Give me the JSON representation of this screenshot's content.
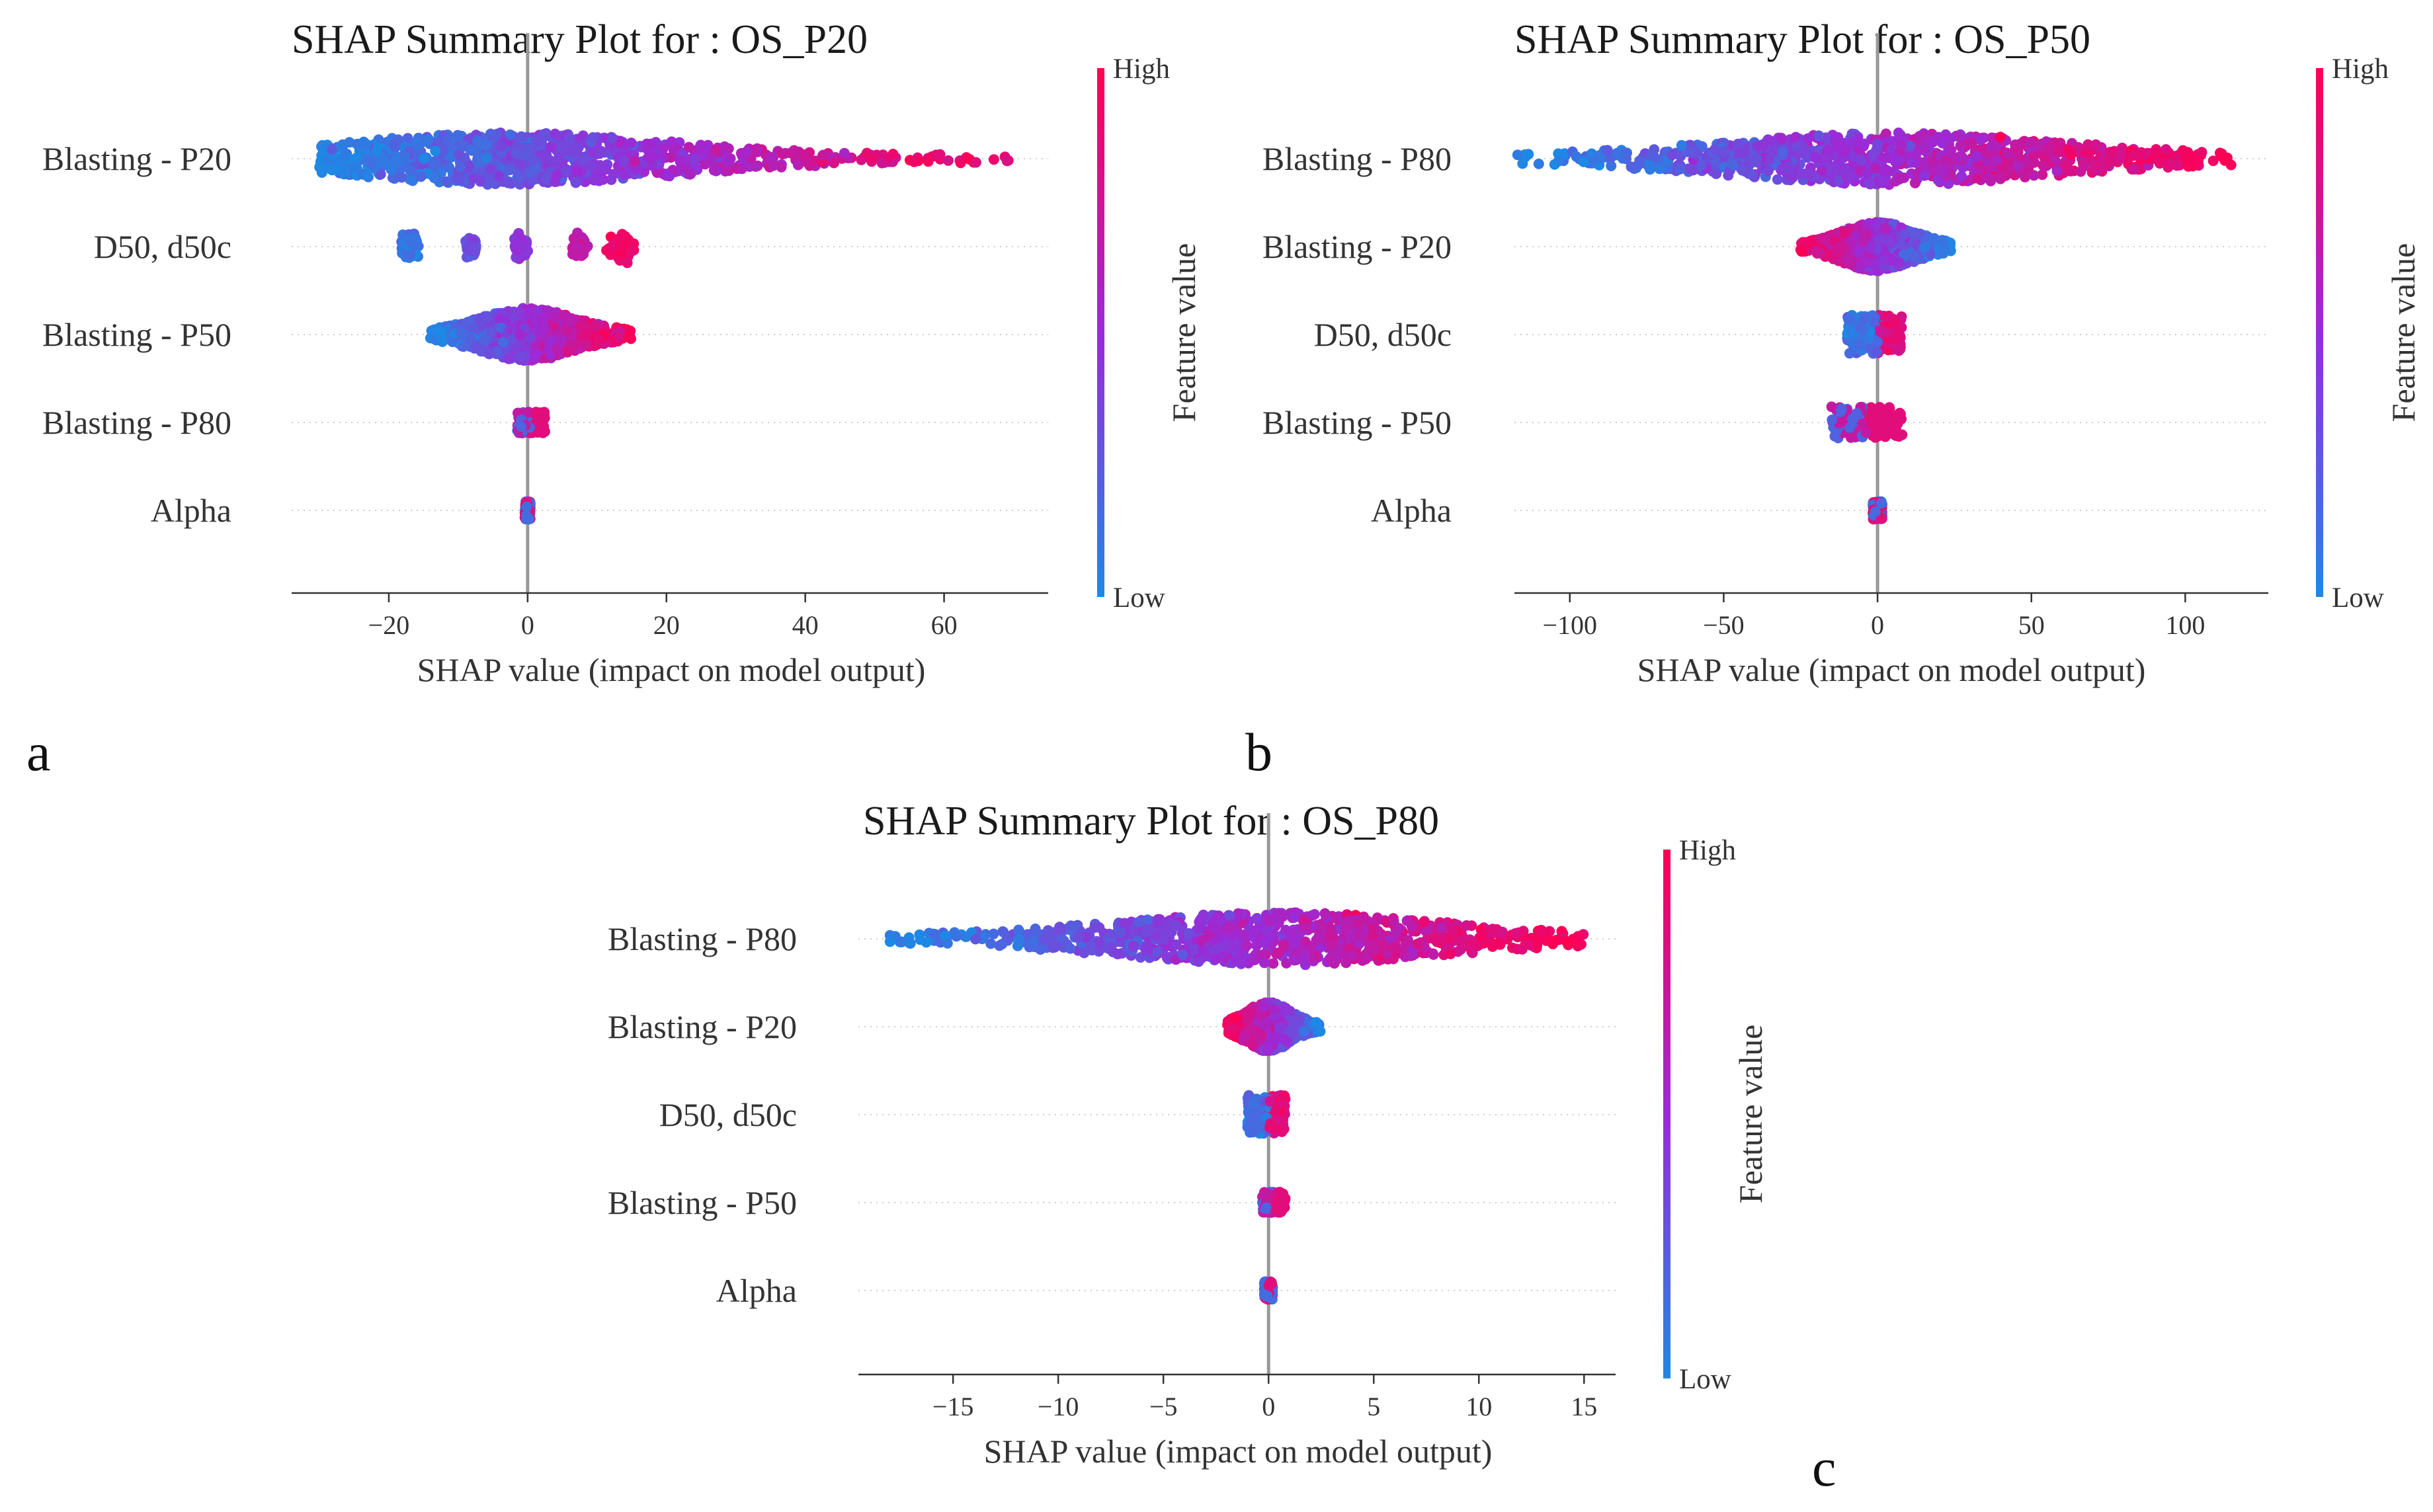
{
  "chart_data": [
    {
      "type": "scatter",
      "subtype": "shap-beeswarm",
      "panel_label": "a",
      "title": "SHAP Summary Plot for : OS_P20",
      "xlabel": "SHAP value (impact on model output)",
      "xlim": [
        -34,
        75
      ],
      "xticks": [
        -20,
        0,
        20,
        40,
        60
      ],
      "xtick_labels": [
        "−20",
        "0",
        "20",
        "40",
        "60"
      ],
      "features": [
        "Blasting - P20",
        "D50, d50c",
        "Blasting - P50",
        "Blasting - P80",
        "Alpha"
      ],
      "series": [
        {
          "name": "Blasting - P20",
          "shape": "continuous",
          "min": -30,
          "max": 70,
          "skew": 0.35,
          "peak": -2,
          "width": 0.3,
          "mode": "gradient"
        },
        {
          "name": "D50, d50c",
          "shape": "clusters",
          "clusters": [
            [
              -17,
              1.0,
              0.1
            ],
            [
              -8,
              0.6,
              0.3
            ],
            [
              -1,
              0.8,
              0.45
            ],
            [
              7.5,
              0.7,
              0.7
            ],
            [
              13.5,
              1.2,
              0.92
            ]
          ]
        },
        {
          "name": "Blasting - P50",
          "shape": "continuous",
          "min": -14,
          "max": 15,
          "skew": 0.5,
          "peak": 0,
          "width": 0.3,
          "mode": "gradient"
        },
        {
          "name": "Blasting - P80",
          "shape": "narrow",
          "min": -1.5,
          "max": 2.5,
          "width": 0.12,
          "mode": "mixed-high"
        },
        {
          "name": "Alpha",
          "shape": "line",
          "min": -0.4,
          "max": 0.4,
          "width": 0.1,
          "mode": "mixed"
        }
      ],
      "colorbar": {
        "high_label": "High",
        "low_label": "Low",
        "title": "Feature value"
      }
    },
    {
      "type": "scatter",
      "subtype": "shap-beeswarm",
      "panel_label": "b",
      "title": "SHAP Summary Plot for : OS_P50",
      "xlabel": "SHAP value (impact on model output)",
      "xlim": [
        -118,
        127
      ],
      "xticks": [
        -100,
        -50,
        0,
        50,
        100
      ],
      "xtick_labels": [
        "−100",
        "−50",
        "0",
        "50",
        "100"
      ],
      "features": [
        "Blasting - P80",
        "Blasting - P20",
        "D50, d50c",
        "Blasting - P50",
        "Alpha"
      ],
      "series": [
        {
          "name": "Blasting - P80",
          "shape": "continuous",
          "min": -117,
          "max": 117,
          "skew": 0.5,
          "peak": 5,
          "width": 0.3,
          "mode": "gradient"
        },
        {
          "name": "Blasting - P20",
          "shape": "continuous",
          "min": -25,
          "max": 24,
          "skew": 0.5,
          "peak": 0,
          "width": 0.28,
          "mode": "reverse"
        },
        {
          "name": "D50, d50c",
          "shape": "split",
          "min": -10,
          "max": 8,
          "width": 0.22,
          "mode": "split"
        },
        {
          "name": "Blasting - P50",
          "shape": "narrow",
          "min": -15,
          "max": 8,
          "width": 0.18,
          "mode": "mixed-high"
        },
        {
          "name": "Alpha",
          "shape": "line",
          "min": -1.5,
          "max": 1.5,
          "width": 0.1,
          "mode": "mixed"
        }
      ],
      "colorbar": {
        "high_label": "High",
        "low_label": "Low",
        "title": "Feature value"
      }
    },
    {
      "type": "scatter",
      "subtype": "shap-beeswarm",
      "panel_label": "c",
      "title": "SHAP Summary Plot for : OS_P80",
      "xlabel": "SHAP value (impact on model output)",
      "xlim": [
        -19.5,
        16.5
      ],
      "xticks": [
        -15,
        -10,
        -5,
        0,
        5,
        10,
        15
      ],
      "xtick_labels": [
        "−15",
        "−10",
        "−5",
        "0",
        "5",
        "10",
        "15"
      ],
      "features": [
        "Blasting - P80",
        "Blasting - P20",
        "D50, d50c",
        "Blasting - P50",
        "Alpha"
      ],
      "series": [
        {
          "name": "Blasting - P80",
          "shape": "continuous",
          "min": -18,
          "max": 15,
          "skew": 0.5,
          "peak": 0.5,
          "width": 0.3,
          "mode": "gradient"
        },
        {
          "name": "Blasting - P20",
          "shape": "continuous",
          "min": -2,
          "max": 2.5,
          "skew": 0.5,
          "peak": 0,
          "width": 0.28,
          "mode": "reverse"
        },
        {
          "name": "D50, d50c",
          "shape": "split",
          "min": -1,
          "max": 0.8,
          "width": 0.22,
          "mode": "split"
        },
        {
          "name": "Blasting - P50",
          "shape": "narrow",
          "min": -0.3,
          "max": 0.8,
          "width": 0.12,
          "mode": "mixed-high"
        },
        {
          "name": "Alpha",
          "shape": "line",
          "min": -0.2,
          "max": 0.2,
          "width": 0.1,
          "mode": "mixed"
        }
      ],
      "colorbar": {
        "high_label": "High",
        "low_label": "Low",
        "title": "Feature value"
      }
    }
  ],
  "colors": {
    "low": "#1e88e5",
    "mid": "#9b2ad8",
    "high": "#ff0052",
    "zero_line": "#999999",
    "grid": "#cccccc",
    "axis": "#333333"
  }
}
